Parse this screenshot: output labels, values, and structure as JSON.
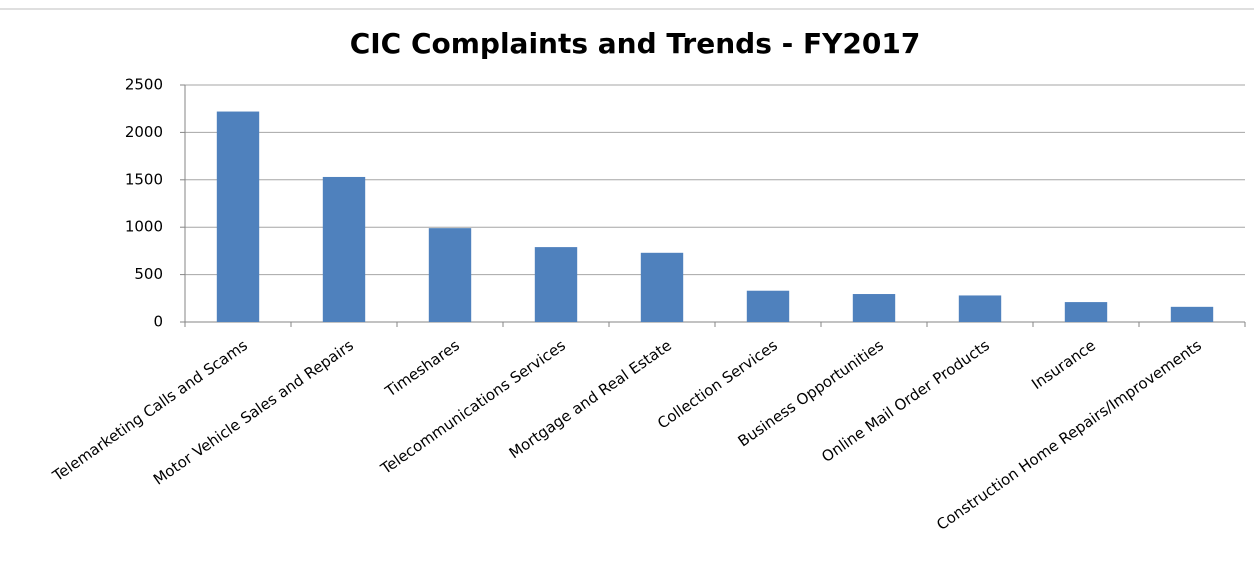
{
  "chart_data": {
    "type": "bar",
    "title": "CIC Complaints and Trends - FY2017",
    "categories": [
      "Telemarketing Calls and Scams",
      "Motor Vehicle Sales and Repairs",
      "Timeshares",
      "Telecommunications Services",
      "Mortgage and Real Estate",
      "Collection Services",
      "Business Opportunities",
      "Online Mail Order Products",
      "Insurance",
      "Construction Home Repairs/Improvements"
    ],
    "values": [
      2220,
      1530,
      990,
      790,
      730,
      330,
      295,
      280,
      210,
      160
    ],
    "color": "#4f81bd",
    "ylim": [
      0,
      2500
    ],
    "yticks": [
      0,
      500,
      1000,
      1500,
      2000,
      2500
    ],
    "grid": true
  }
}
